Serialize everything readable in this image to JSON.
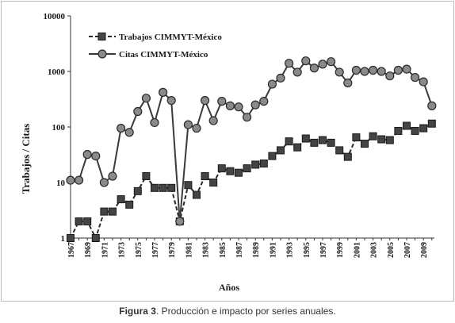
{
  "chart_data": {
    "type": "line",
    "yscale": "log",
    "ylim": [
      1,
      10000
    ],
    "yticks": [
      "1",
      "10",
      "100",
      "1000",
      "10000"
    ],
    "ylabel": "Trabajos / Citas",
    "xlabel": "Años",
    "x": [
      1967,
      1968,
      1969,
      1970,
      1971,
      1972,
      1973,
      1974,
      1975,
      1976,
      1977,
      1978,
      1979,
      1980,
      1981,
      1982,
      1983,
      1984,
      1985,
      1986,
      1987,
      1988,
      1989,
      1990,
      1991,
      1992,
      1993,
      1994,
      1995,
      1996,
      1997,
      1998,
      1999,
      2000,
      2001,
      2002,
      2003,
      2004,
      2005,
      2006,
      2007,
      2008,
      2009,
      2010
    ],
    "xtick_labels": [
      "1967",
      "1969",
      "1971",
      "1973",
      "1975",
      "1977",
      "1979",
      "1981",
      "1983",
      "1985",
      "1987",
      "1989",
      "1991",
      "1993",
      "1995",
      "1997",
      "1999",
      "2001",
      "2003",
      "2005",
      "2007",
      "2009"
    ],
    "legend_position": "top-left",
    "grid": false,
    "series": [
      {
        "name": "Trabajos CIMMYT-México",
        "style": "dashed-square",
        "color": "#2a2a2a",
        "values": [
          1,
          2,
          2,
          1,
          3,
          3,
          5,
          4,
          7,
          13,
          8,
          8,
          8,
          2,
          9,
          6,
          13,
          10,
          18,
          16,
          15,
          18,
          21,
          22,
          30,
          38,
          55,
          43,
          62,
          52,
          58,
          52,
          38,
          29,
          65,
          50,
          68,
          60,
          58,
          85,
          105,
          85,
          95,
          115
        ]
      },
      {
        "name": "Citas CIMMYT-México",
        "style": "solid-circle",
        "color": "#3a3a3a",
        "values": [
          11,
          11,
          32,
          30,
          10,
          13,
          95,
          80,
          190,
          330,
          120,
          420,
          300,
          2,
          110,
          95,
          300,
          130,
          290,
          240,
          230,
          150,
          250,
          290,
          590,
          760,
          1400,
          970,
          1550,
          1150,
          1350,
          1500,
          970,
          620,
          1050,
          1000,
          1050,
          1000,
          830,
          1050,
          1100,
          780,
          650,
          240
        ]
      }
    ]
  },
  "caption": {
    "bold": "Figura 3",
    "rest": ". Producción e impacto por series anuales."
  }
}
